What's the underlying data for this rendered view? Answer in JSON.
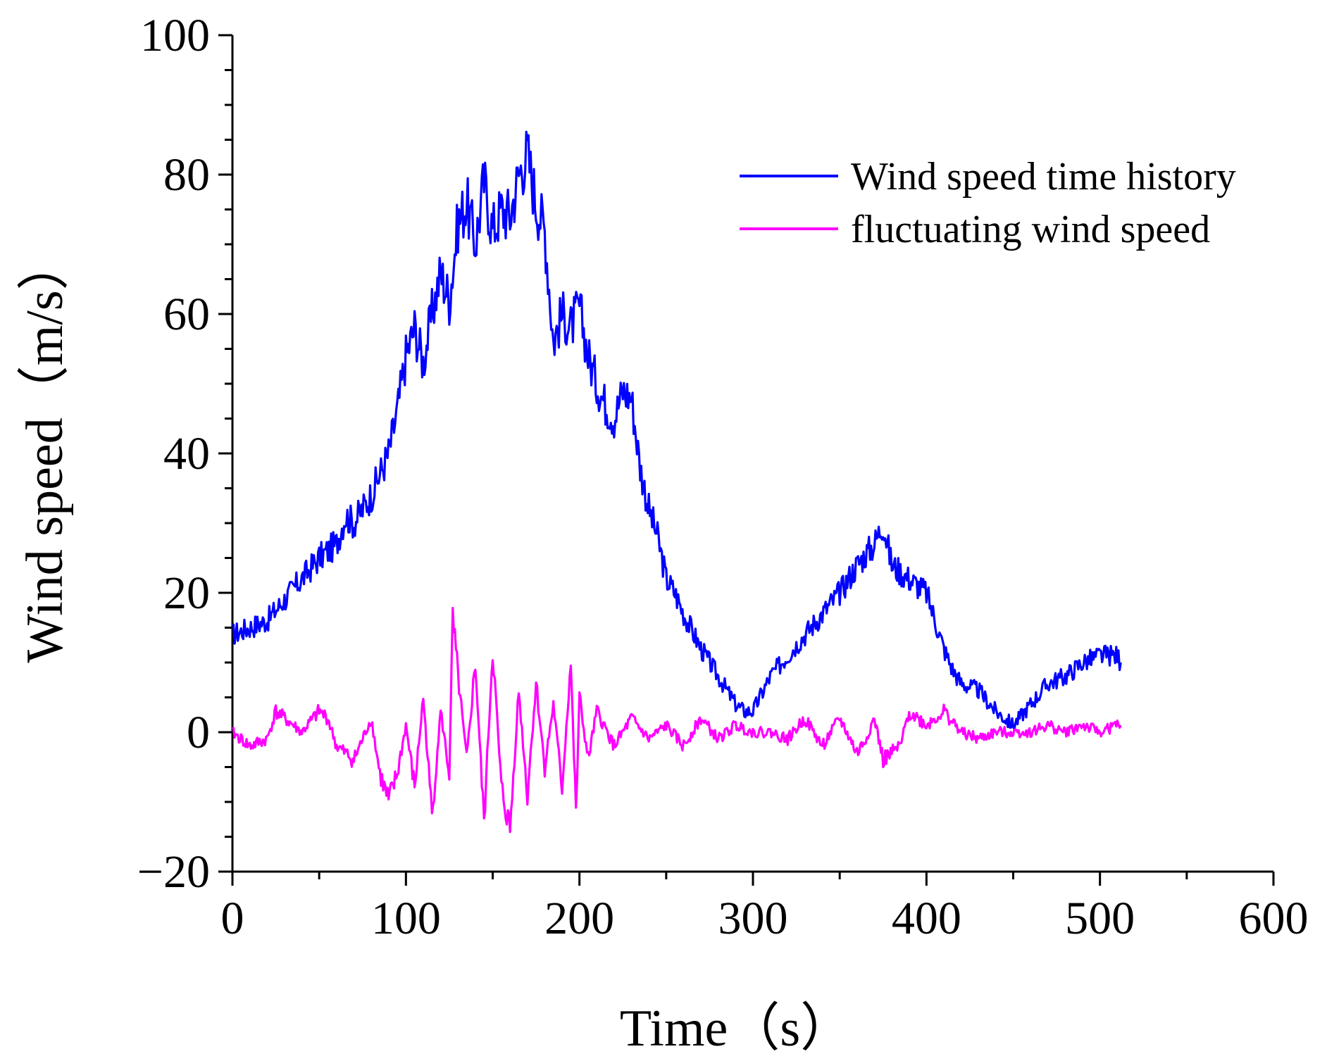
{
  "chart_data": {
    "type": "line",
    "title": "",
    "xlabel": "Time（s）",
    "ylabel": "Wind speed（m/s）",
    "xlim": [
      0,
      600
    ],
    "ylim": [
      -20,
      100
    ],
    "xticks": [
      0,
      100,
      200,
      300,
      400,
      500,
      600
    ],
    "yticks": [
      -20,
      0,
      20,
      40,
      60,
      80,
      100
    ],
    "xtick_labels": [
      "0",
      "100",
      "200",
      "300",
      "400",
      "500",
      "600"
    ],
    "ytick_labels": [
      "−20",
      "0",
      "20",
      "40",
      "60",
      "80",
      "100"
    ],
    "grid": false,
    "legend_position": "top-right",
    "series": [
      {
        "name": "Wind speed time history",
        "color": "#0000ff",
        "x": [
          0,
          10,
          20,
          30,
          40,
          50,
          60,
          65,
          70,
          80,
          90,
          95,
          100,
          105,
          110,
          115,
          120,
          125,
          130,
          135,
          140,
          145,
          150,
          155,
          160,
          165,
          170,
          175,
          180,
          185,
          190,
          195,
          200,
          205,
          210,
          215,
          220,
          225,
          230,
          235,
          240,
          245,
          250,
          255,
          260,
          270,
          280,
          290,
          295,
          300,
          310,
          320,
          330,
          340,
          350,
          360,
          370,
          375,
          380,
          390,
          400,
          405,
          410,
          415,
          420,
          430,
          440,
          450,
          460,
          470,
          480,
          490,
          500,
          505,
          510,
          512
        ],
        "values": [
          14,
          15,
          16,
          19,
          22,
          25,
          27,
          31,
          30,
          34,
          40,
          46,
          54,
          58,
          53,
          60,
          66,
          62,
          73,
          76,
          70,
          79,
          72,
          75,
          74,
          80,
          83,
          76,
          72,
          56,
          60,
          58,
          61,
          54,
          50,
          47,
          45,
          49,
          48,
          38,
          32,
          28,
          22,
          20,
          17,
          12,
          8,
          4,
          3,
          3,
          8,
          11,
          14,
          17,
          20,
          24,
          27,
          30,
          24,
          22,
          20,
          16,
          12,
          9,
          7,
          6,
          3,
          1,
          4,
          7,
          8,
          10,
          11,
          11,
          11,
          10
        ]
      },
      {
        "name": "fluctuating wind speed",
        "color": "#ff00ff",
        "x": [
          0,
          10,
          20,
          25,
          30,
          40,
          50,
          55,
          60,
          70,
          80,
          85,
          90,
          95,
          100,
          105,
          110,
          115,
          120,
          125,
          127,
          130,
          135,
          140,
          145,
          150,
          155,
          160,
          165,
          170,
          175,
          180,
          185,
          190,
          195,
          198,
          200,
          205,
          210,
          220,
          230,
          240,
          250,
          260,
          270,
          280,
          290,
          300,
          310,
          320,
          330,
          340,
          350,
          360,
          365,
          370,
          375,
          380,
          385,
          390,
          400,
          410,
          420,
          430,
          440,
          450,
          460,
          470,
          480,
          490,
          500,
          510,
          512
        ],
        "values": [
          0,
          -2,
          -1,
          3,
          2,
          0,
          3,
          2,
          -2,
          -4,
          2,
          -6,
          -10,
          -6,
          1,
          -8,
          5,
          -12,
          3,
          -6,
          16,
          8,
          -4,
          10,
          -13,
          12,
          -8,
          -14,
          6,
          -9,
          7,
          -5,
          4,
          -8,
          10,
          -12,
          5,
          -4,
          3,
          -2,
          2,
          -1,
          1,
          -2,
          2,
          -1,
          1,
          0,
          0,
          -1,
          2,
          -2,
          2,
          -3,
          -1,
          2,
          -4,
          -3,
          -2,
          3,
          1,
          3,
          0,
          -1,
          0,
          0,
          0,
          1,
          0,
          1,
          0,
          1,
          1
        ]
      }
    ]
  }
}
